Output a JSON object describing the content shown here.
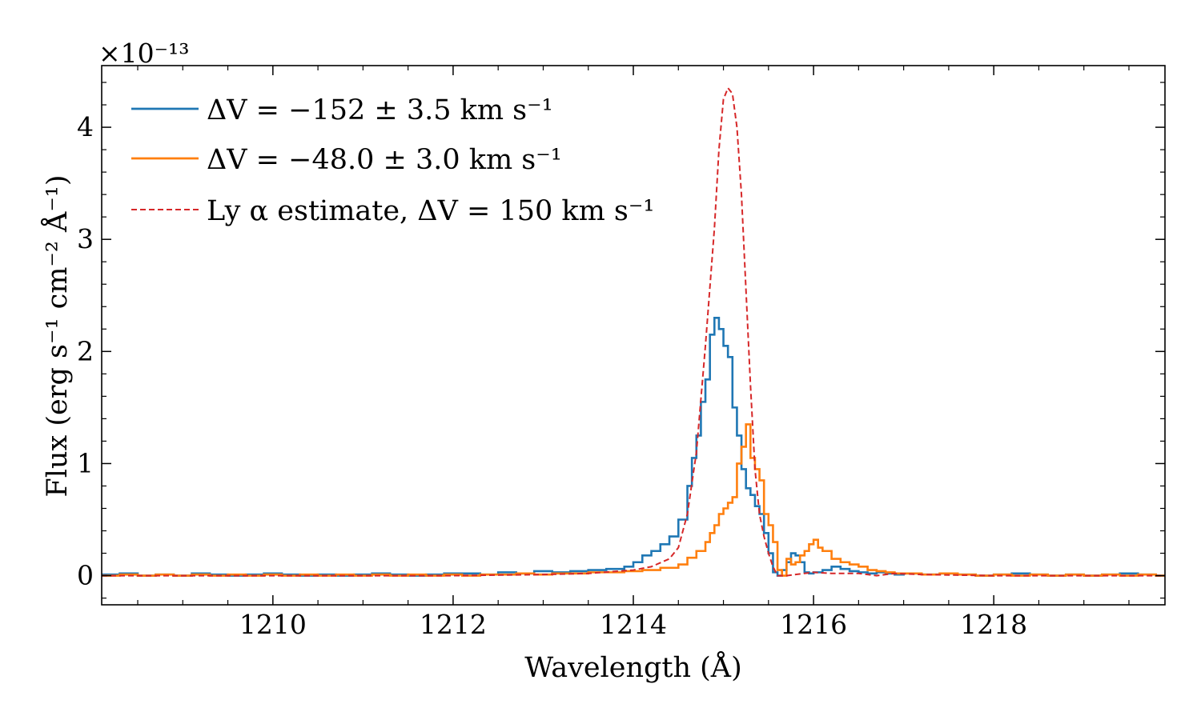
{
  "chart_data": {
    "type": "line",
    "xlabel": "Wavelength (Å)",
    "ylabel": "Flux (erg s⁻¹ cm⁻² Å⁻¹)",
    "y_scale_label": "×10⁻¹³",
    "xlim": [
      1208.1,
      1219.9
    ],
    "ylim": [
      -0.26,
      4.55
    ],
    "x_ticks": [
      1210,
      1212,
      1214,
      1216,
      1218
    ],
    "x_tick_labels": [
      "1210",
      "1212",
      "1214",
      "1216",
      "1218"
    ],
    "y_ticks": [
      0,
      1,
      2,
      3,
      4
    ],
    "y_tick_labels": [
      "0",
      "1",
      "2",
      "3",
      "4"
    ],
    "x_minor_step": 0.5,
    "y_minor_step": 0.2,
    "legend_position": "top-left",
    "series": [
      {
        "name": "ΔV = −152 ± 3.5 km s⁻¹",
        "color": "#1f77b4",
        "style": "steps",
        "x": [
          1208.1,
          1208.3,
          1208.5,
          1208.7,
          1208.9,
          1209.1,
          1209.3,
          1209.5,
          1209.7,
          1209.9,
          1210.1,
          1210.3,
          1210.5,
          1210.7,
          1210.9,
          1211.1,
          1211.3,
          1211.5,
          1211.7,
          1211.9,
          1212.1,
          1212.3,
          1212.5,
          1212.7,
          1212.9,
          1213.1,
          1213.3,
          1213.5,
          1213.7,
          1213.9,
          1214.0,
          1214.1,
          1214.2,
          1214.3,
          1214.4,
          1214.5,
          1214.6,
          1214.65,
          1214.7,
          1214.75,
          1214.8,
          1214.85,
          1214.9,
          1214.95,
          1215.0,
          1215.05,
          1215.1,
          1215.15,
          1215.2,
          1215.25,
          1215.3,
          1215.35,
          1215.4,
          1215.45,
          1215.5,
          1215.55,
          1215.6,
          1215.65,
          1215.7,
          1215.75,
          1215.8,
          1215.85,
          1215.9,
          1215.95,
          1216.0,
          1216.1,
          1216.2,
          1216.3,
          1216.4,
          1216.5,
          1216.6,
          1216.7,
          1216.8,
          1216.9,
          1217.0,
          1217.2,
          1217.4,
          1217.6,
          1217.8,
          1218.0,
          1218.2,
          1218.4,
          1218.6,
          1218.8,
          1219.0,
          1219.2,
          1219.4,
          1219.6,
          1219.8
        ],
        "y": [
          0.01,
          0.02,
          0.0,
          0.01,
          0.0,
          0.02,
          0.01,
          0.0,
          0.01,
          0.02,
          0.01,
          0.0,
          0.01,
          0.0,
          0.01,
          0.02,
          0.01,
          0.0,
          0.01,
          0.02,
          0.02,
          0.01,
          0.03,
          0.02,
          0.04,
          0.03,
          0.04,
          0.05,
          0.06,
          0.08,
          0.12,
          0.18,
          0.22,
          0.28,
          0.35,
          0.5,
          0.8,
          1.05,
          1.25,
          1.55,
          1.75,
          2.15,
          2.3,
          2.2,
          2.05,
          1.95,
          1.5,
          1.25,
          0.95,
          0.78,
          0.72,
          0.62,
          0.55,
          0.38,
          0.2,
          0.03,
          0.0,
          0.05,
          0.12,
          0.2,
          0.18,
          0.12,
          0.03,
          0.02,
          0.03,
          0.05,
          0.08,
          0.06,
          0.04,
          0.03,
          0.02,
          0.03,
          0.02,
          0.01,
          0.02,
          0.01,
          0.02,
          0.01,
          0.0,
          0.01,
          0.02,
          0.01,
          0.0,
          0.01,
          0.0,
          0.01,
          0.02,
          0.01,
          0.0
        ]
      },
      {
        "name": "ΔV = −48.0 ± 3.0 km s⁻¹",
        "color": "#ff7f0e",
        "style": "steps",
        "x": [
          1208.1,
          1208.3,
          1208.5,
          1208.7,
          1208.9,
          1209.1,
          1209.3,
          1209.5,
          1209.7,
          1209.9,
          1210.1,
          1210.3,
          1210.5,
          1210.7,
          1210.9,
          1211.1,
          1211.3,
          1211.5,
          1211.7,
          1211.9,
          1212.1,
          1212.3,
          1212.5,
          1212.7,
          1212.9,
          1213.1,
          1213.3,
          1213.5,
          1213.7,
          1213.9,
          1214.1,
          1214.3,
          1214.5,
          1214.6,
          1214.7,
          1214.8,
          1214.85,
          1214.9,
          1214.95,
          1215.0,
          1215.05,
          1215.1,
          1215.15,
          1215.2,
          1215.25,
          1215.3,
          1215.35,
          1215.4,
          1215.45,
          1215.5,
          1215.55,
          1215.6,
          1215.65,
          1215.7,
          1215.75,
          1215.8,
          1215.85,
          1215.9,
          1215.95,
          1216.0,
          1216.05,
          1216.1,
          1216.2,
          1216.3,
          1216.4,
          1216.5,
          1216.6,
          1216.7,
          1216.8,
          1216.9,
          1217.0,
          1217.2,
          1217.4,
          1217.6,
          1217.8,
          1218.0,
          1218.2,
          1218.4,
          1218.6,
          1218.8,
          1219.0,
          1219.2,
          1219.4,
          1219.6,
          1219.8
        ],
        "y": [
          0.0,
          0.01,
          0.0,
          0.01,
          0.0,
          0.01,
          0.0,
          0.01,
          0.0,
          0.01,
          0.0,
          0.01,
          0.0,
          0.01,
          0.0,
          0.01,
          0.0,
          0.01,
          0.0,
          0.01,
          0.0,
          0.01,
          0.01,
          0.02,
          0.01,
          0.02,
          0.02,
          0.03,
          0.03,
          0.04,
          0.05,
          0.07,
          0.1,
          0.16,
          0.22,
          0.3,
          0.38,
          0.45,
          0.55,
          0.6,
          0.65,
          0.7,
          1.0,
          1.15,
          1.35,
          1.05,
          0.95,
          0.85,
          0.55,
          0.45,
          0.3,
          0.05,
          0.0,
          0.15,
          0.1,
          0.12,
          0.18,
          0.22,
          0.28,
          0.32,
          0.25,
          0.22,
          0.15,
          0.12,
          0.1,
          0.08,
          0.05,
          0.04,
          0.03,
          0.02,
          0.02,
          0.01,
          0.02,
          0.01,
          0.0,
          0.01,
          0.0,
          0.01,
          0.0,
          0.01,
          0.0,
          0.01,
          0.0,
          0.01,
          0.0
        ]
      },
      {
        "name": "Ly α estimate, ΔV = 150 km s⁻¹",
        "color": "#d62728",
        "style": "dashed",
        "x": [
          1208.1,
          1212.0,
          1213.0,
          1213.5,
          1214.0,
          1214.2,
          1214.4,
          1214.5,
          1214.6,
          1214.7,
          1214.8,
          1214.9,
          1214.95,
          1215.0,
          1215.05,
          1215.1,
          1215.15,
          1215.2,
          1215.25,
          1215.3,
          1215.35,
          1215.4,
          1215.45,
          1215.5,
          1215.55,
          1215.6,
          1215.7,
          1215.8,
          1215.9,
          1216.0,
          1216.2,
          1216.5,
          1216.7,
          1216.9,
          1217.2,
          1218.0,
          1219.9
        ],
        "y": [
          0.0,
          0.0,
          0.01,
          0.02,
          0.05,
          0.08,
          0.15,
          0.25,
          0.55,
          1.1,
          2.05,
          3.1,
          3.8,
          4.25,
          4.35,
          4.3,
          4.0,
          3.4,
          2.55,
          1.7,
          0.95,
          0.55,
          0.35,
          0.2,
          0.08,
          0.0,
          0.0,
          0.01,
          0.02,
          0.03,
          0.02,
          0.02,
          0.0,
          0.02,
          0.01,
          0.0,
          0.0
        ]
      }
    ]
  }
}
